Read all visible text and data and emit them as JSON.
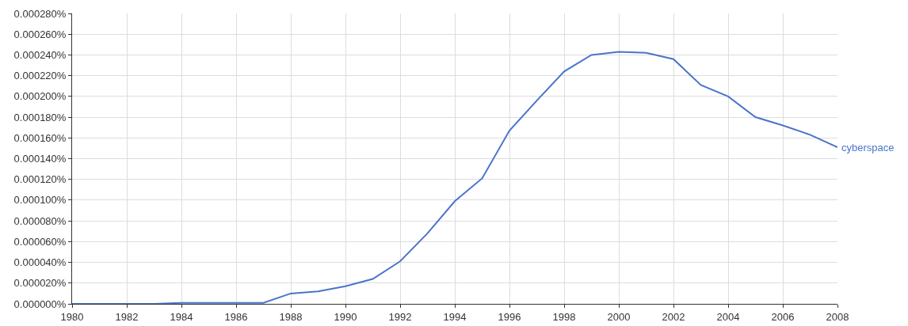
{
  "chart_data": {
    "type": "line",
    "x": [
      1980,
      1981,
      1982,
      1983,
      1984,
      1985,
      1986,
      1987,
      1988,
      1989,
      1990,
      1991,
      1992,
      1993,
      1994,
      1995,
      1996,
      1997,
      1998,
      1999,
      2000,
      2001,
      2002,
      2003,
      2004,
      2005,
      2006,
      2007,
      2008
    ],
    "series": [
      {
        "name": "cyberspace",
        "color": "#4a74c9",
        "values": [
          0,
          0,
          0,
          0,
          1e-06,
          1e-06,
          1e-06,
          1e-06,
          1e-05,
          1.2e-05,
          1.7e-05,
          2.4e-05,
          4.1e-05,
          6.8e-05,
          9.9e-05,
          0.000121,
          0.000167,
          0.000196,
          0.000224,
          0.00024,
          0.000243,
          0.000242,
          0.000236,
          0.000211,
          0.0002,
          0.00018,
          0.000172,
          0.000163,
          0.000151
        ]
      }
    ],
    "xlim": [
      1980,
      2008
    ],
    "xticks": [
      1980,
      1982,
      1984,
      1986,
      1988,
      1990,
      1992,
      1994,
      1996,
      1998,
      2000,
      2002,
      2004,
      2006,
      2008
    ],
    "ylim": [
      0,
      0.00028
    ],
    "yticks": [
      {
        "value": 0,
        "label": "0.000000%"
      },
      {
        "value": 2e-05,
        "label": "0.000020%"
      },
      {
        "value": 4e-05,
        "label": "0.000040%"
      },
      {
        "value": 6e-05,
        "label": "0.000060%"
      },
      {
        "value": 8e-05,
        "label": "0.000080%"
      },
      {
        "value": 0.0001,
        "label": "0.000100%"
      },
      {
        "value": 0.00012,
        "label": "0.000120%"
      },
      {
        "value": 0.00014,
        "label": "0.000140%"
      },
      {
        "value": 0.00016,
        "label": "0.000160%"
      },
      {
        "value": 0.00018,
        "label": "0.000180%"
      },
      {
        "value": 0.0002,
        "label": "0.000200%"
      },
      {
        "value": 0.00022,
        "label": "0.000220%"
      },
      {
        "value": 0.00024,
        "label": "0.000240%"
      },
      {
        "value": 0.00026,
        "label": "0.000260%"
      },
      {
        "value": 0.00028,
        "label": "0.000280%"
      }
    ],
    "grid": true,
    "legend": false,
    "marker": "none",
    "line_style": "solid"
  }
}
